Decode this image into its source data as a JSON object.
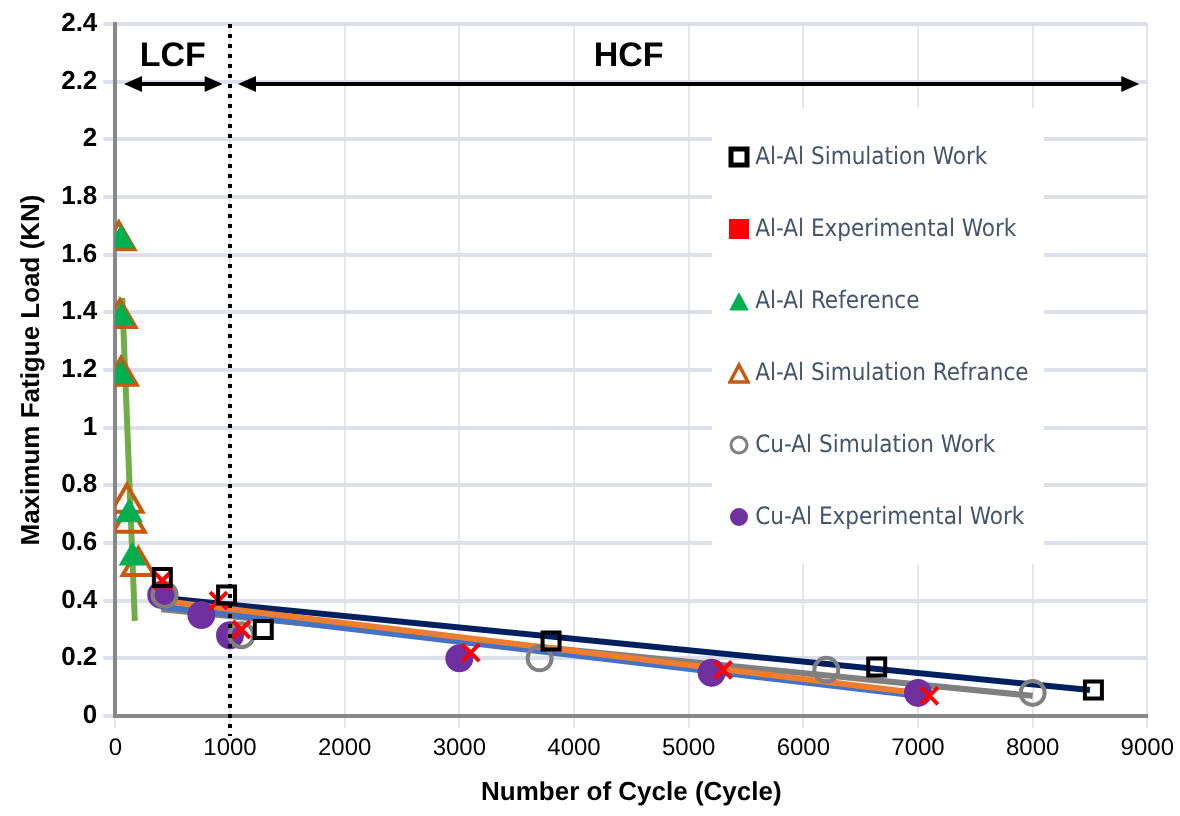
{
  "chart_data": {
    "type": "scatter",
    "xlabel": "Number of Cycle (Cycle)",
    "ylabel": "Maximum Fatigue Load (KN)",
    "xlim": [
      0,
      9000
    ],
    "xticks": [
      0,
      1000,
      2000,
      3000,
      4000,
      5000,
      6000,
      7000,
      8000,
      9000
    ],
    "ylim": [
      0,
      2.4
    ],
    "yticks": [
      0,
      0.2,
      0.4,
      0.6,
      0.8,
      1,
      1.2,
      1.4,
      1.6,
      1.8,
      2,
      2.2,
      2.4
    ],
    "grid": true,
    "legend": "right",
    "ref_lines": [
      {
        "axis": "x",
        "value": 1000,
        "color": "#000000",
        "line_style": "dotted"
      }
    ],
    "annotations": [
      "LCF",
      "HCF"
    ],
    "series": [
      {
        "name": "Al-Al Simulation Work",
        "color": "#000000",
        "marker": "square",
        "x": [
          410,
          970,
          1290,
          3800,
          6640,
          8530
        ],
        "values": [
          0.48,
          0.42,
          0.3,
          0.26,
          0.17,
          0.09
        ]
      },
      {
        "name": "Al-Al Experimental Work",
        "color": "#ff0000",
        "marker": "cross",
        "x": [
          410,
          900,
          1100,
          3100,
          5300,
          7100
        ],
        "values": [
          0.47,
          0.4,
          0.3,
          0.22,
          0.16,
          0.07
        ]
      },
      {
        "name": "Al-Al Reference",
        "color": "#00b050",
        "marker": "triangle",
        "x": [
          50,
          50,
          50,
          120,
          150
        ],
        "values": [
          1.65,
          1.38,
          1.18,
          0.7,
          0.55
        ]
      },
      {
        "name": "Al-Al Simulation Refrance",
        "color": "#c55a11",
        "marker": "triangle",
        "x": [
          30,
          40,
          50,
          100,
          120,
          200
        ],
        "values": [
          1.65,
          1.38,
          1.18,
          0.74,
          0.67,
          0.52
        ]
      },
      {
        "name": "Cu-Al Simulation Work",
        "color": "#808080",
        "marker": "circle",
        "x": [
          430,
          1100,
          3700,
          6200,
          8000
        ],
        "values": [
          0.42,
          0.28,
          0.2,
          0.16,
          0.08
        ]
      },
      {
        "name": "Cu-Al Experimental Work",
        "color": "#7030a0",
        "marker": "circle",
        "x": [
          400,
          750,
          1000,
          3000,
          5200,
          7000
        ],
        "values": [
          0.42,
          0.35,
          0.28,
          0.2,
          0.15,
          0.08
        ]
      },
      {
        "type": "line",
        "color": "#002060",
        "marker": "none",
        "x": [
          400,
          8500
        ],
        "values": [
          0.41,
          0.09
        ]
      },
      {
        "type": "line",
        "color": "#808080",
        "marker": "none",
        "x": [
          400,
          8000
        ],
        "values": [
          0.37,
          0.07
        ]
      },
      {
        "type": "line",
        "color": "#4472c4",
        "marker": "none",
        "x": [
          400,
          7000
        ],
        "values": [
          0.38,
          0.07
        ]
      },
      {
        "type": "line",
        "color": "#ed7d31",
        "marker": "none",
        "x": [
          400,
          7000
        ],
        "values": [
          0.4,
          0.08
        ]
      },
      {
        "type": "line",
        "color": "#70ad47",
        "marker": "none",
        "x": [
          60,
          170
        ],
        "values": [
          1.45,
          0.33
        ]
      }
    ]
  }
}
